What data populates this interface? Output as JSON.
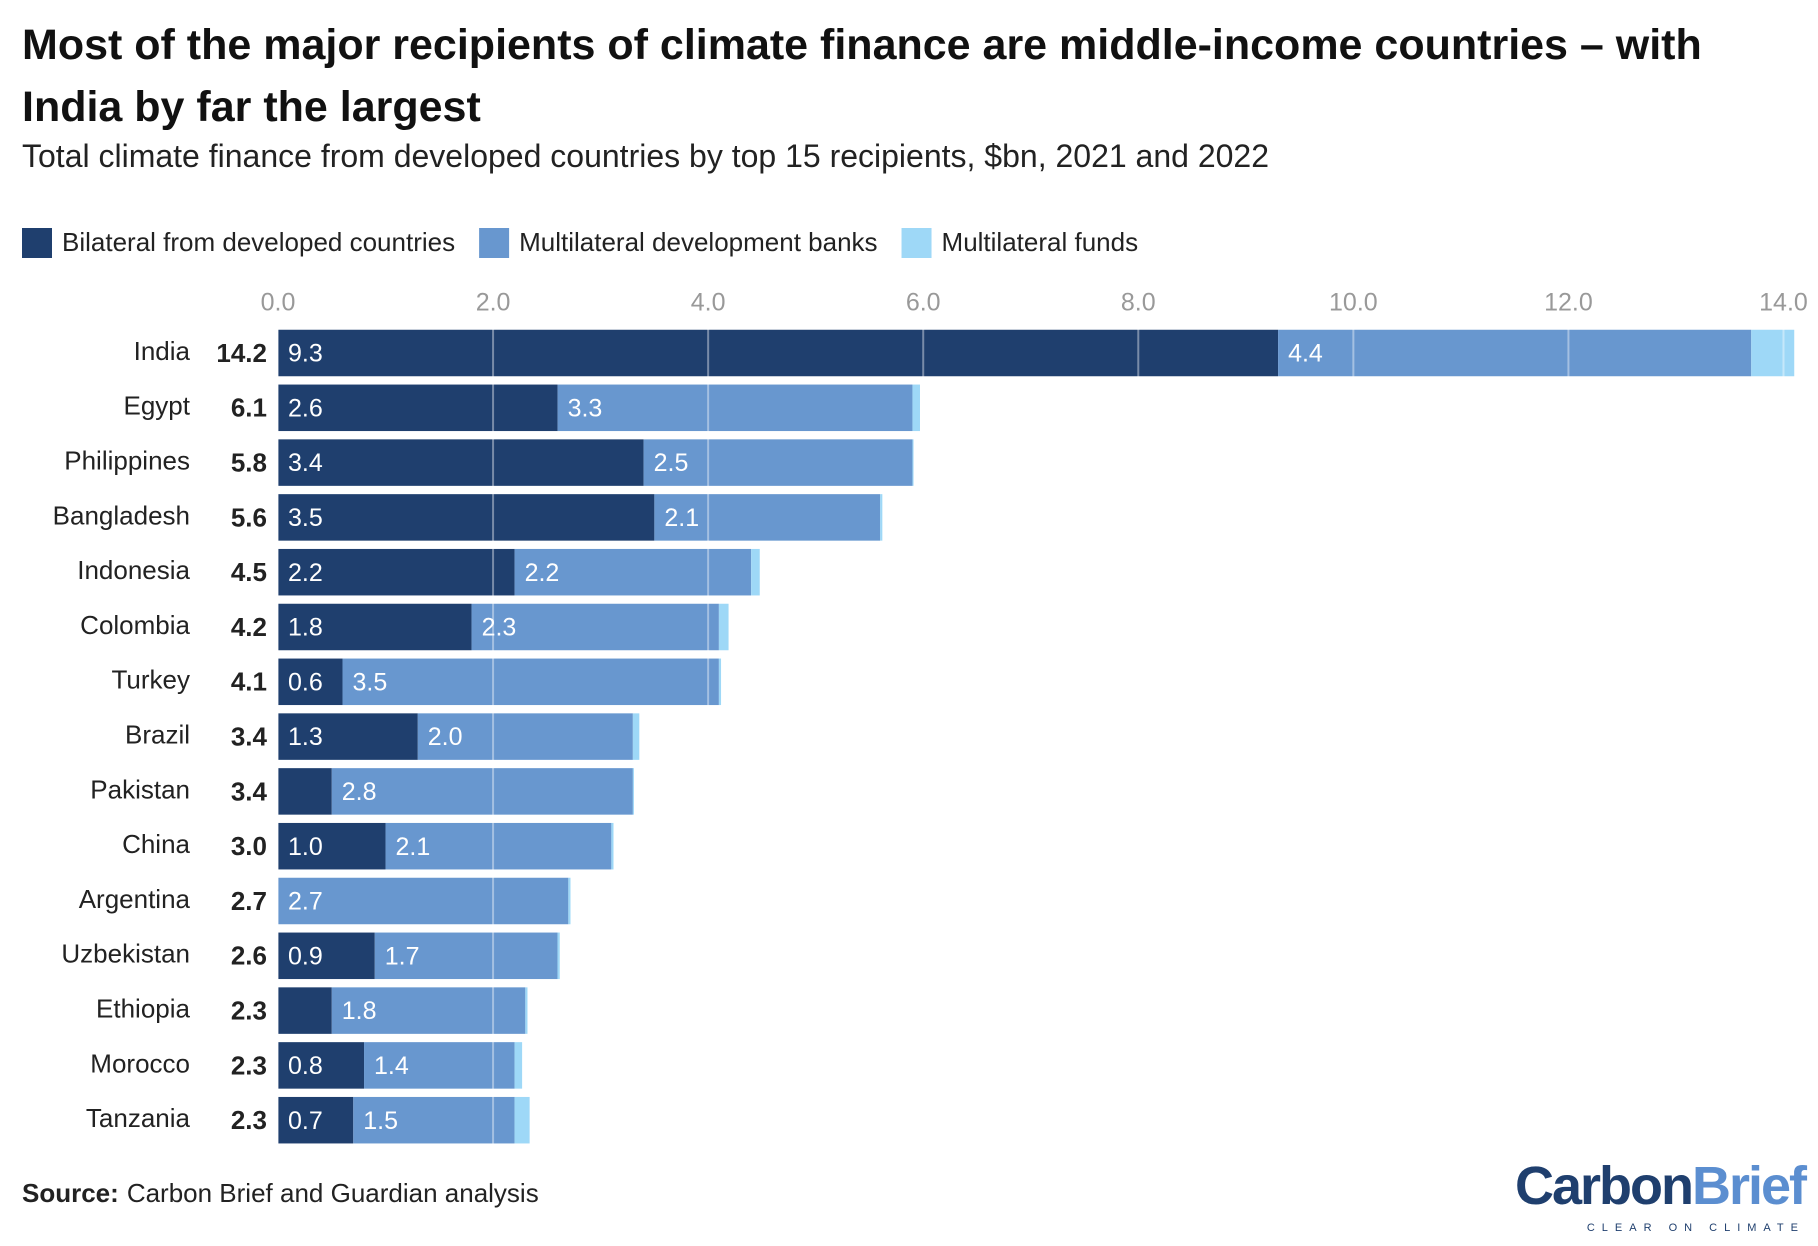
{
  "chart_data": {
    "type": "stacked-bar-horizontal",
    "title": "Most of the major recipients of climate finance are middle-income countries – with India by far the largest",
    "subtitle": "Total climate finance from developed countries by top 15 recipients, $bn, 2021 and 2022",
    "categories": [
      "India",
      "Egypt",
      "Philippines",
      "Bangladesh",
      "Indonesia",
      "Colombia",
      "Turkey",
      "Brazil",
      "Pakistan",
      "China",
      "Argentina",
      "Uzbekistan",
      "Ethiopia",
      "Morocco",
      "Tanzania"
    ],
    "series": [
      {
        "name": "Bilateral from developed countries",
        "color": "#1f3f6e",
        "values": [
          9.3,
          2.6,
          3.4,
          3.5,
          2.2,
          1.8,
          0.6,
          1.3,
          0.5,
          1.0,
          0,
          0.9,
          0.5,
          0.8,
          0.7
        ],
        "value_labels": [
          "9.3",
          "2.6",
          "3.4",
          "3.5",
          "2.2",
          "1.8",
          "0.6",
          "1.3",
          null,
          "1.0",
          null,
          "0.9",
          null,
          "0.8",
          "0.7"
        ]
      },
      {
        "name": "Multilateral development banks",
        "color": "#6897cf",
        "values": [
          4.4,
          3.3,
          2.5,
          2.1,
          2.2,
          2.3,
          3.5,
          2.0,
          2.8,
          2.1,
          2.7,
          1.7,
          1.8,
          1.4,
          1.5
        ],
        "value_labels": [
          "4.4",
          "3.3",
          "2.5",
          "2.1",
          "2.2",
          "2.3",
          "3.5",
          "2.0",
          "2.8",
          "2.1",
          "2.7",
          "1.7",
          "1.8",
          "1.4",
          "1.5"
        ]
      },
      {
        "name": "Multilateral funds",
        "color": "#9ed8f7",
        "values": [
          0.4,
          0.07,
          0.01,
          0.02,
          0.08,
          0.09,
          0.02,
          0.06,
          0.01,
          0.02,
          0.02,
          0.02,
          0.02,
          0.07,
          0.14
        ]
      }
    ],
    "totals": [
      14.2,
      6.1,
      5.8,
      5.6,
      4.5,
      4.2,
      4.1,
      3.4,
      3.4,
      3.0,
      2.7,
      2.6,
      2.3,
      2.3,
      2.3
    ],
    "total_labels": [
      "14.2",
      "6.1",
      "5.8",
      "5.6",
      "4.5",
      "4.2",
      "4.1",
      "3.4",
      "3.4",
      "3.0",
      "2.7",
      "2.6",
      "2.3",
      "2.3",
      "2.3"
    ],
    "xlim": [
      0,
      14.2
    ],
    "xticks": [
      {
        "value": 0,
        "label": "0.0"
      },
      {
        "value": 2,
        "label": "2.0"
      },
      {
        "value": 4,
        "label": "4.0"
      },
      {
        "value": 6,
        "label": "6.0"
      },
      {
        "value": 8,
        "label": "8.0"
      },
      {
        "value": 10,
        "label": "10.0"
      },
      {
        "value": 12,
        "label": "12.0"
      },
      {
        "value": 14,
        "label": "14.0"
      }
    ],
    "grid": true,
    "source_label": "Source:",
    "source": "Carbon Brief and Guardian analysis",
    "logo": [
      "Carbon",
      "Brief"
    ],
    "logo_tagline": "CLEAR ON CLIMATE"
  }
}
